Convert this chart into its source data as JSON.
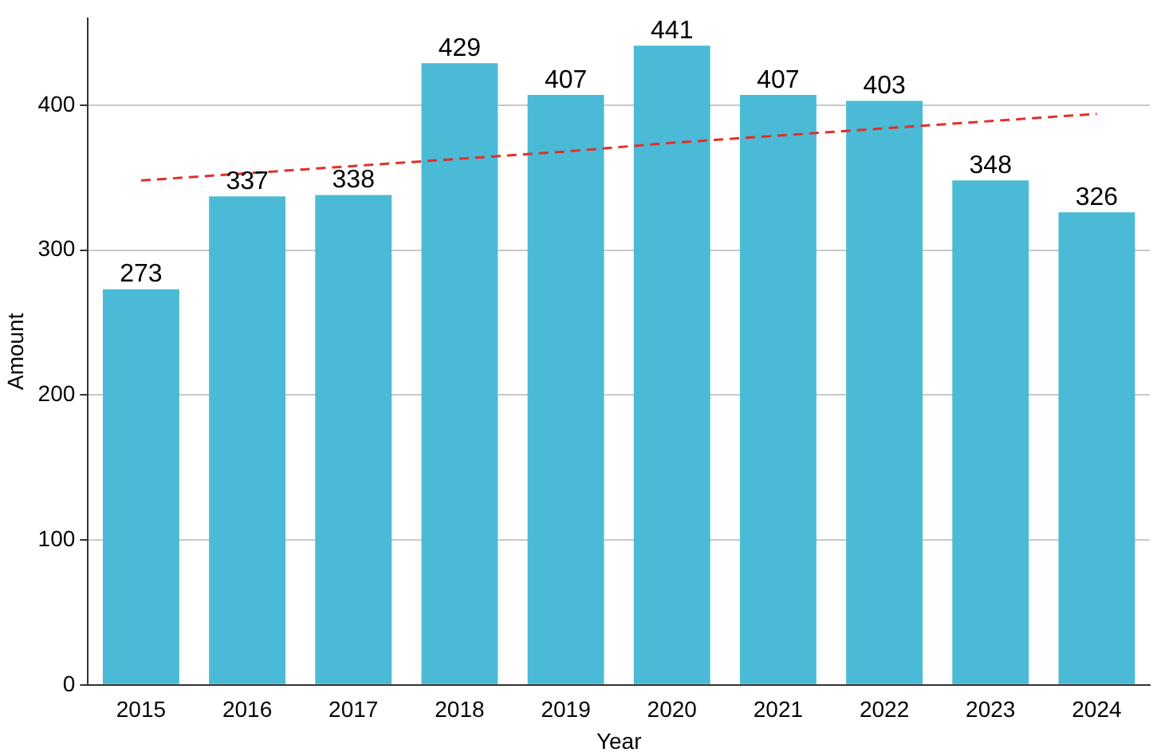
{
  "chart_data": {
    "type": "bar",
    "xlabel": "Year",
    "ylabel": "Amount",
    "categories": [
      "2015",
      "2016",
      "2017",
      "2018",
      "2019",
      "2020",
      "2021",
      "2022",
      "2023",
      "2024"
    ],
    "series": [
      {
        "color": "#4bbad6",
        "values": [
          273,
          337,
          338,
          429,
          407,
          441,
          407,
          403,
          348,
          326
        ],
        "data_labels": true
      },
      {
        "type": "line",
        "color": "#e0302a",
        "values": [
          348,
          353,
          358,
          363,
          368,
          374,
          379,
          384,
          389,
          394
        ],
        "line_style": "dashed",
        "marker": "none"
      }
    ],
    "ylim": [
      0,
      460
    ],
    "yticks": [
      0,
      100,
      200,
      300,
      400
    ],
    "grid": "y",
    "legend": false
  }
}
